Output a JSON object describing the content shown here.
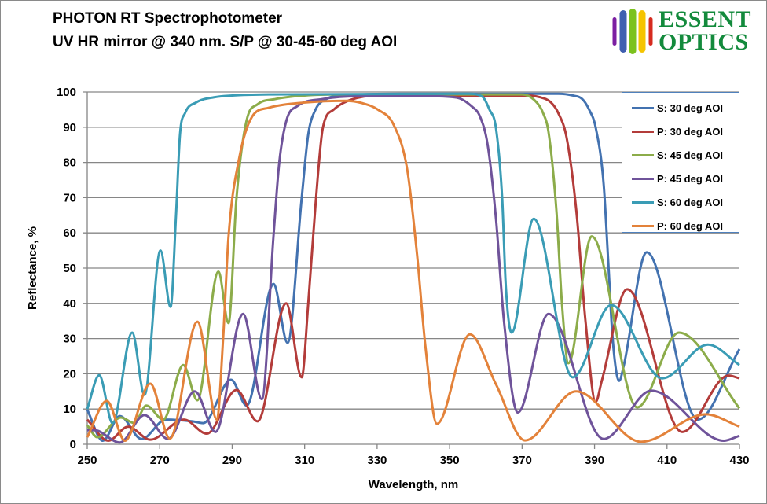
{
  "title": {
    "line1": "PHOTON RT Spectrophotometer",
    "line2": "UV HR mirror @ 340 nm. S/P @ 30-45-60  deg AOI"
  },
  "logo": {
    "line1": "ESSENT",
    "line2": "OPTICS",
    "stripe_colors": [
      "#7b1fa2",
      "#3f5fb0",
      "#7cc21e",
      "#f5c400",
      "#d62b1f"
    ]
  },
  "chart_data": {
    "type": "line",
    "title": "PHOTON RT Spectrophotometer — UV HR mirror @ 340 nm. S/P @ 30-45-60 deg AOI",
    "xlabel": "Wavelength, nm",
    "ylabel": "Reflectance, %",
    "xlim": [
      250,
      430
    ],
    "ylim": [
      0,
      100
    ],
    "xticks": [
      250,
      270,
      290,
      310,
      330,
      350,
      370,
      390,
      410,
      430
    ],
    "yticks": [
      0,
      10,
      20,
      30,
      40,
      50,
      60,
      70,
      80,
      90,
      100
    ],
    "grid": "horizontal",
    "legend_position": "top-right",
    "series": [
      {
        "name": "S: 30 deg AOI",
        "color": "#4372b0",
        "points": [
          [
            250,
            9.8
          ],
          [
            254.3,
            1
          ],
          [
            259,
            8
          ],
          [
            265,
            1.5
          ],
          [
            271.7,
            7
          ],
          [
            279,
            6.5
          ],
          [
            282,
            6
          ],
          [
            289.7,
            18.3
          ],
          [
            294,
            11
          ],
          [
            301.4,
            45.5
          ],
          [
            305.3,
            28.8
          ],
          [
            309.2,
            70
          ],
          [
            311,
            88
          ],
          [
            313,
            95
          ],
          [
            316,
            98
          ],
          [
            320,
            99
          ],
          [
            340,
            99.5
          ],
          [
            380,
            99.5
          ],
          [
            384,
            99
          ],
          [
            386.6,
            98
          ],
          [
            388.5,
            95
          ],
          [
            390.3,
            90
          ],
          [
            392.5,
            74
          ],
          [
            393.8,
            51.5
          ],
          [
            395,
            30
          ],
          [
            396.8,
            18
          ],
          [
            398,
            22
          ],
          [
            404.4,
            54.5
          ],
          [
            418.5,
            7
          ],
          [
            430,
            27
          ]
        ]
      },
      {
        "name": "P: 30 deg AOI",
        "color": "#b33c3a",
        "points": [
          [
            250,
            7
          ],
          [
            255.8,
            1
          ],
          [
            261.3,
            5
          ],
          [
            267.4,
            1.3
          ],
          [
            276.7,
            7
          ],
          [
            283,
            3
          ],
          [
            291.2,
            15.4
          ],
          [
            297,
            6.5
          ],
          [
            304.9,
            40
          ],
          [
            309.2,
            19
          ],
          [
            311,
            40
          ],
          [
            313,
            68
          ],
          [
            315,
            89.7
          ],
          [
            318,
            95
          ],
          [
            322,
            97.5
          ],
          [
            330,
            99
          ],
          [
            370,
            99
          ],
          [
            375,
            98.5
          ],
          [
            378,
            97
          ],
          [
            380,
            94
          ],
          [
            382.3,
            87
          ],
          [
            385,
            66
          ],
          [
            387.5,
            35
          ],
          [
            390.3,
            12
          ],
          [
            392,
            18
          ],
          [
            399,
            44
          ],
          [
            414.2,
            3.5
          ],
          [
            427,
            19.5
          ],
          [
            430,
            18.7
          ]
        ]
      },
      {
        "name": "S: 45 deg AOI",
        "color": "#8cac4a",
        "points": [
          [
            250,
            5.4
          ],
          [
            252.8,
            2
          ],
          [
            259.3,
            7.6
          ],
          [
            263,
            6
          ],
          [
            266.3,
            11
          ],
          [
            271,
            7
          ],
          [
            276.5,
            22.5
          ],
          [
            280.4,
            12.5
          ],
          [
            286.2,
            49
          ],
          [
            289,
            34.4
          ],
          [
            291.2,
            70
          ],
          [
            294,
            92
          ],
          [
            297,
            96.5
          ],
          [
            302,
            98
          ],
          [
            310,
            99
          ],
          [
            320,
            99.3
          ],
          [
            370,
            99.3
          ],
          [
            373.6,
            97.5
          ],
          [
            375.8,
            94
          ],
          [
            377.3,
            88.6
          ],
          [
            379.5,
            66
          ],
          [
            381,
            40
          ],
          [
            382.8,
            23
          ],
          [
            389.2,
            59
          ],
          [
            401.8,
            10.5
          ],
          [
            413.3,
            31.7
          ],
          [
            430,
            10.2
          ]
        ]
      },
      {
        "name": "P: 45 deg AOI",
        "color": "#6f539a",
        "points": [
          [
            250,
            4
          ],
          [
            252,
            4
          ],
          [
            259,
            0.5
          ],
          [
            265.8,
            8.3
          ],
          [
            272.3,
            1.5
          ],
          [
            279.7,
            15
          ],
          [
            285.4,
            3.5
          ],
          [
            293,
            37
          ],
          [
            298.2,
            12.8
          ],
          [
            301.4,
            59
          ],
          [
            303,
            80
          ],
          [
            305,
            92
          ],
          [
            308,
            96
          ],
          [
            315,
            98
          ],
          [
            325,
            98.8
          ],
          [
            345,
            98.8
          ],
          [
            352,
            98.4
          ],
          [
            356,
            96
          ],
          [
            358.4,
            93
          ],
          [
            360.5,
            85
          ],
          [
            362.8,
            64
          ],
          [
            365,
            35
          ],
          [
            368.8,
            9
          ],
          [
            377.3,
            37
          ],
          [
            392.5,
            1.5
          ],
          [
            405.7,
            15.2
          ],
          [
            425.7,
            1
          ],
          [
            430,
            2.4
          ]
        ]
      },
      {
        "name": "S: 60 deg AOI",
        "color": "#3a9cb5",
        "points": [
          [
            250,
            10
          ],
          [
            253.3,
            19.6
          ],
          [
            257,
            6
          ],
          [
            262.4,
            31.7
          ],
          [
            265.8,
            14
          ],
          [
            270.2,
            55
          ],
          [
            273,
            39
          ],
          [
            274.5,
            65
          ],
          [
            275.6,
            88
          ],
          [
            277,
            94
          ],
          [
            280,
            97
          ],
          [
            285,
            98.5
          ],
          [
            290,
            99
          ],
          [
            300,
            99.3
          ],
          [
            355,
            99.5
          ],
          [
            359,
            98.7
          ],
          [
            361,
            95
          ],
          [
            362.8,
            89.7
          ],
          [
            364.5,
            70
          ],
          [
            365.5,
            45
          ],
          [
            367.1,
            31.7
          ],
          [
            373.2,
            64
          ],
          [
            384,
            19
          ],
          [
            394.6,
            39.5
          ],
          [
            408.7,
            18.7
          ],
          [
            421.3,
            28.3
          ],
          [
            430,
            22.5
          ]
        ]
      },
      {
        "name": "P: 60 deg AOI",
        "color": "#e3823a",
        "points": [
          [
            250,
            2
          ],
          [
            255.4,
            12.3
          ],
          [
            260.4,
            1
          ],
          [
            267.4,
            17.2
          ],
          [
            272.8,
            1.6
          ],
          [
            280.4,
            34.8
          ],
          [
            285.8,
            7
          ],
          [
            287.5,
            30
          ],
          [
            289,
            59
          ],
          [
            291.9,
            81
          ],
          [
            295.5,
            93
          ],
          [
            300,
            95.5
          ],
          [
            310,
            97
          ],
          [
            321.6,
            97.5
          ],
          [
            326,
            96.8
          ],
          [
            330.2,
            95
          ],
          [
            334.6,
            90.6
          ],
          [
            338.3,
            78
          ],
          [
            341,
            54
          ],
          [
            343.3,
            28
          ],
          [
            346.5,
            5.8
          ],
          [
            355.6,
            31.2
          ],
          [
            362.8,
            17
          ],
          [
            370.8,
            1.1
          ],
          [
            384.9,
            15
          ],
          [
            402.9,
            0.7
          ],
          [
            420.7,
            8.5
          ],
          [
            430,
            5
          ]
        ]
      }
    ]
  }
}
